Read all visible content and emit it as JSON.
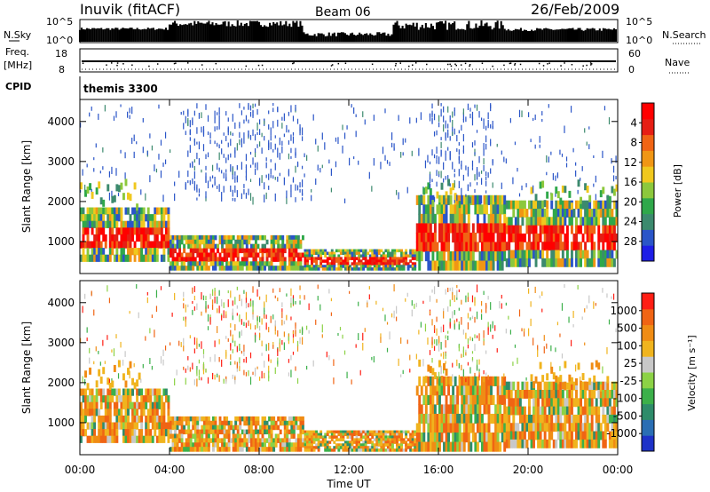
{
  "header": {
    "station": "Inuvik (fitACF)",
    "beam": "Beam 06",
    "date": "26/Feb/2009"
  },
  "status_panels": {
    "nsky_label": "N.Sky",
    "nsky_ticks": [
      "10^5",
      "10^0"
    ],
    "nsearch_label": "N.Search",
    "nsearch_ticks": [
      "10^5",
      "10^0"
    ],
    "freq_label": "Freq.",
    "freq_unit": "[MHz]",
    "freq_ticks": [
      "18",
      "8"
    ],
    "nave_label": "Nave",
    "nave_ticks": [
      "60",
      "0"
    ],
    "cpid_label": "CPID",
    "cpid_value": "themis 3300"
  },
  "chart_data": [
    {
      "type": "heatmap",
      "name": "power",
      "ylabel": "Slant Range [km]",
      "yticks": [
        1000,
        2000,
        3000,
        4000
      ],
      "ylim": [
        200,
        4550
      ],
      "xlim_hours": [
        0,
        24
      ],
      "colorbar": {
        "label": "Power [dB]",
        "ticks": [
          "4",
          "8",
          "12",
          "16",
          "20",
          "24",
          "28"
        ],
        "colors": [
          "#1e1ee6",
          "#2a55c8",
          "#3c8a6e",
          "#2fa84a",
          "#8cc83c",
          "#f0c81e",
          "#f09614",
          "#f06414",
          "#e61e14",
          "#ff0000"
        ]
      }
    },
    {
      "type": "heatmap",
      "name": "velocity",
      "ylabel": "Slant Range [km]",
      "yticks": [
        1000,
        2000,
        3000,
        4000
      ],
      "ylim": [
        200,
        4550
      ],
      "xlim_hours": [
        0,
        24
      ],
      "colorbar": {
        "label": "Velocity [m s⁻¹]",
        "ticks": [
          "1000",
          "500",
          "100",
          "25",
          "-25",
          "-100",
          "-500",
          "-1000"
        ],
        "colors": [
          "#1e32c8",
          "#2a6eb4",
          "#2e8c6a",
          "#3cb04a",
          "#8cd246",
          "#c8c8c8",
          "#f0b41e",
          "#f08c14",
          "#f06414",
          "#ff1e14"
        ]
      }
    }
  ],
  "time_axis": {
    "ticks": [
      "00:00",
      "04:00",
      "08:00",
      "12:00",
      "16:00",
      "20:00",
      "00:00"
    ],
    "label": "Time UT"
  }
}
